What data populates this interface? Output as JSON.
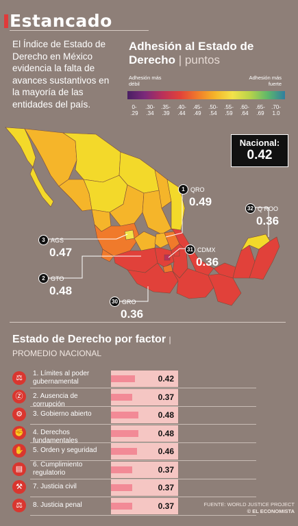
{
  "header": {
    "title": "Estancado",
    "intro": "El Índice de Estado de Derecho en México evidencia la falta de avances sustantivos en la mayoría de las entidades del país."
  },
  "map_section": {
    "title": "Adhesión al Estado de Derecho",
    "title_sub": "| puntos",
    "scale_left": "Adhesión más débil",
    "scale_right": "Adhesión más fuerte",
    "scale_ticks": [
      "0-.29",
      ".30-.34",
      ".35-.39",
      ".40-.44",
      ".45-.49",
      ".50-.54",
      ".55-.59",
      ".60-.64",
      ".65-.69",
      ".70-1.0"
    ],
    "scale_colors": [
      "#4a1f63",
      "#7b2a7a",
      "#b9305a",
      "#e1413a",
      "#f07a2b",
      "#f5b52a",
      "#f3e24a",
      "#b8d34a",
      "#5fb86a",
      "#2f7fa0"
    ],
    "nacional_label": "Nacional:",
    "nacional_value": "0.42",
    "callouts": [
      {
        "rank": "1",
        "state": "QRO",
        "value": "0.49"
      },
      {
        "rank": "32",
        "state": "Q ROO",
        "value": "0.36"
      },
      {
        "rank": "3",
        "state": "AGS",
        "value": "0.47"
      },
      {
        "rank": "31",
        "state": "CDMX",
        "value": "0.36"
      },
      {
        "rank": "2",
        "state": "GTO",
        "value": "0.48"
      },
      {
        "rank": "30",
        "state": "GRO",
        "value": "0.36"
      }
    ]
  },
  "bar_section": {
    "title": "Estado de Derecho por factor",
    "title_sub": "| PROMEDIO NACIONAL"
  },
  "chart_data": {
    "type": "bar",
    "title": "Estado de Derecho por factor",
    "subtitle": "PROMEDIO NACIONAL",
    "categories": [
      "1. Límites al poder gubernamental",
      "2. Ausencia de corrupción",
      "3. Gobierno abierto",
      "4. Derechos fundamentales",
      "5. Orden y seguridad",
      "6. Cumplimiento regulatorio",
      "7. Justicia civil",
      "8. Justicia penal"
    ],
    "values": [
      0.42,
      0.37,
      0.48,
      0.48,
      0.46,
      0.37,
      0.37,
      0.37
    ],
    "value_labels": [
      "0.42",
      "0.37",
      "0.48",
      "0.48",
      "0.46",
      "0.37",
      "0.37",
      "0.37"
    ],
    "icons": [
      "scales-icon",
      "no-bribe-icon",
      "open-government-icon",
      "rights-icon",
      "police-icon",
      "regulation-icon",
      "civil-justice-icon",
      "criminal-justice-icon"
    ],
    "xlim": [
      0,
      1
    ],
    "orientation": "horizontal",
    "bar_color": "#f28a96",
    "track_color": "#f5c6c3"
  },
  "footer": {
    "source": "FUENTE: WORLD JUSTICE PROJECT",
    "brand": "© EL ECONOMISTA"
  }
}
